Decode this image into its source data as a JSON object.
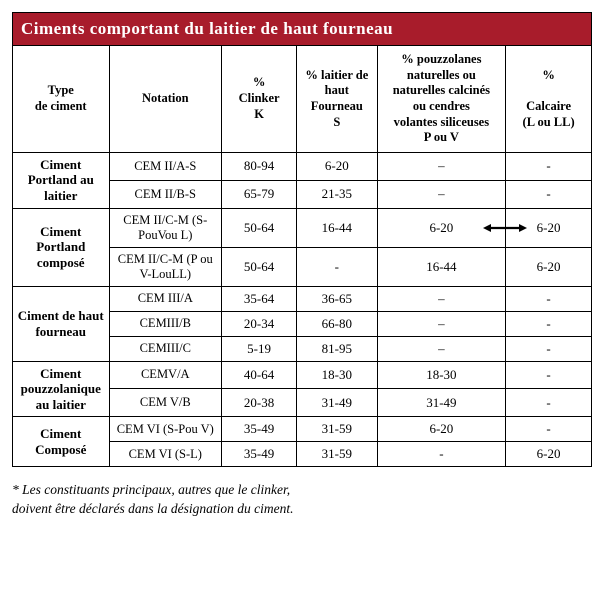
{
  "title": "Ciments comportant du laitier de haut fourneau",
  "table": {
    "headers": {
      "type": "Type\nde ciment",
      "notation": "Notation",
      "clinker": "%\nClinker\nK",
      "laitier": "% laitier de\nhaut\nFourneau\nS",
      "pouzz": "% pouzzolanes\nnaturelles ou\nnaturelles calcinés\nou cendres\nvolantes siliceuses\nP ou V",
      "calcaire": "%\n\nCalcaire\n(L ou LL)"
    },
    "groups": [
      {
        "type": "Ciment Portland au laitier",
        "rows": [
          {
            "notation": "CEM II/A-S",
            "clinker": "80-94",
            "laitier": "6-20",
            "pouzz": "–",
            "calcaire": "-"
          },
          {
            "notation": "CEM II/B-S",
            "clinker": "65-79",
            "laitier": "21-35",
            "pouzz": "–",
            "calcaire": "-"
          }
        ]
      },
      {
        "type": "Ciment Portland composé",
        "rows": [
          {
            "notation": "CEM II/C-M (S-PouVou L)",
            "clinker": "50-64",
            "laitier": "16-44",
            "pouzz": "6-20",
            "calcaire": "6-20",
            "arrow": true
          },
          {
            "notation": "CEM II/C-M (P ou V-LouLL)",
            "clinker": "50-64",
            "laitier": "-",
            "pouzz": "16-44",
            "calcaire": "6-20"
          }
        ]
      },
      {
        "type": "Ciment de haut fourneau",
        "rows": [
          {
            "notation": "CEM III/A",
            "clinker": "35-64",
            "laitier": "36-65",
            "pouzz": "–",
            "calcaire": "-"
          },
          {
            "notation": "CEMIII/B",
            "clinker": "20-34",
            "laitier": "66-80",
            "pouzz": "–",
            "calcaire": "-"
          },
          {
            "notation": "CEMIII/C",
            "clinker": "5-19",
            "laitier": "81-95",
            "pouzz": "–",
            "calcaire": "-"
          }
        ]
      },
      {
        "type": "Ciment pouzzolanique au laitier",
        "rows": [
          {
            "notation": "CEMV/A",
            "clinker": "40-64",
            "laitier": "18-30",
            "pouzz": "18-30",
            "calcaire": "-"
          },
          {
            "notation": "CEM V/B",
            "clinker": "20-38",
            "laitier": "31-49",
            "pouzz": "31-49",
            "calcaire": "-"
          }
        ]
      },
      {
        "type": "Ciment Composé",
        "rows": [
          {
            "notation": "CEM VI (S-Pou V)",
            "clinker": "35-49",
            "laitier": "31-59",
            "pouzz": "6-20",
            "calcaire": "-"
          },
          {
            "notation": "CEM VI (S-L)",
            "clinker": "35-49",
            "laitier": "31-59",
            "pouzz": "-",
            "calcaire": "6-20"
          }
        ]
      }
    ]
  },
  "footnote": "* Les constituants principaux, autres que le clinker,\ndoivent être déclarés dans la désignation du ciment.",
  "colors": {
    "header_bg": "#a81c2b",
    "header_text": "#ffffff",
    "border": "#000000",
    "page_bg": "#ffffff"
  }
}
